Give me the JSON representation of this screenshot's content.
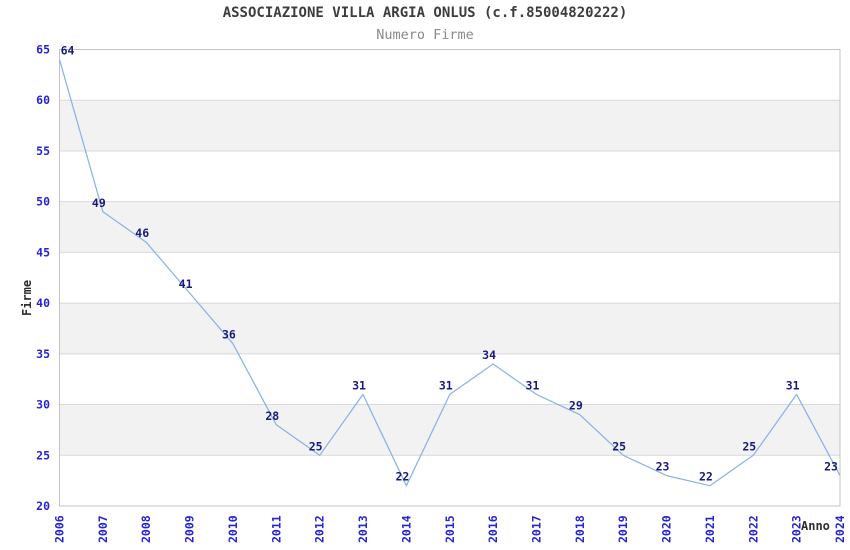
{
  "chart_data": {
    "type": "line",
    "title": "ASSOCIAZIONE VILLA ARGIA ONLUS (c.f.85004820222)",
    "subtitle": "Numero Firme",
    "xlabel": "Anno",
    "ylabel": "Firme",
    "x": [
      "2006",
      "2007",
      "2008",
      "2009",
      "2010",
      "2011",
      "2012",
      "2013",
      "2014",
      "2015",
      "2016",
      "2017",
      "2018",
      "2019",
      "2020",
      "2021",
      "2022",
      "2023",
      "2024"
    ],
    "values": [
      64,
      49,
      46,
      41,
      36,
      28,
      25,
      31,
      22,
      31,
      34,
      31,
      29,
      25,
      23,
      22,
      25,
      31,
      23
    ],
    "point_labels": [
      "64",
      "49",
      "46",
      "41",
      "36",
      "28",
      "25",
      "31",
      "22",
      "31",
      "34",
      "31",
      "29",
      "25",
      "23",
      "22",
      "25",
      "31",
      "23"
    ],
    "ylim": [
      20,
      65
    ],
    "ytick_step": 5,
    "yticks": [
      "20",
      "25",
      "30",
      "35",
      "40",
      "45",
      "50",
      "55",
      "60",
      "65"
    ],
    "grid": "horizontal-gridlines-with-alternating-bands",
    "legend": "none",
    "colors": {
      "line": "#8ab3e7",
      "point_label": "#191980",
      "tick_label": "#2424d6",
      "band_fill": "#f2f2f2",
      "gridline": "#d9d9d9",
      "frame": "#c3c3c3",
      "title": "#3d3d3d",
      "subtitle": "#8a8a8a",
      "axis_title": "#2e2e2e",
      "background": "#ffffff"
    }
  }
}
